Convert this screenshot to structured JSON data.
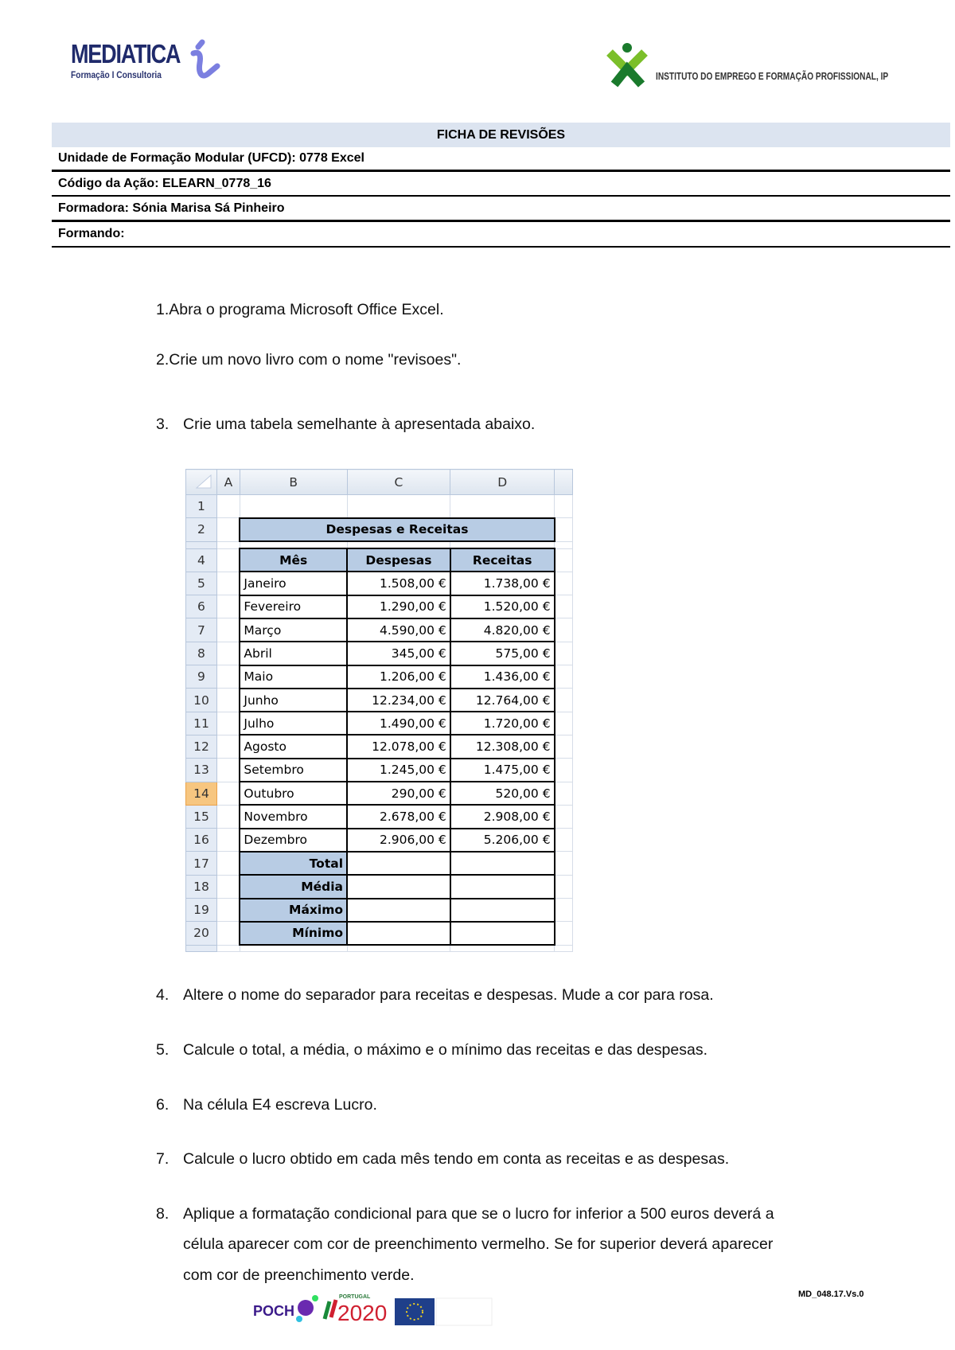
{
  "logos": {
    "mediatica": {
      "name": "MEDIATICA",
      "tagline": "Formação I Consultoria"
    },
    "iefp": {
      "name": "INSTITUTO DO EMPREGO E FORMAÇÃO PROFISSIONAL, IP"
    },
    "footer": "POCH PORTUGAL 2020 UNIÃO EUROPEIA Fundo Social Europeu"
  },
  "header": {
    "title": "FICHA DE REVISÕES",
    "ufcd": "Unidade de Formação Modular (UFCD): 0778 Excel",
    "codigo": "Código da Ação: ELEARN_0778_16",
    "formadora": "Formadora: Sónia Marisa Sá Pinheiro",
    "formando": "Formando:"
  },
  "instructions_top": [
    {
      "n": "1.",
      "text": "Abra o programa Microsoft Office Excel."
    },
    {
      "n": "2.",
      "text": "Crie um novo livro com o nome \"revisoes\"."
    },
    {
      "n": "3.",
      "text": "Crie uma tabela semelhante à apresentada abaixo."
    }
  ],
  "sheet": {
    "columns": [
      "A",
      "B",
      "C",
      "D"
    ],
    "selected_row": "14",
    "title": "Despesas e Receitas",
    "headers": [
      "Mês",
      "Despesas",
      "Receitas"
    ],
    "rows": [
      {
        "r": "5",
        "mes": "Janeiro",
        "desp": "1.508,00 €",
        "rec": "1.738,00 €"
      },
      {
        "r": "6",
        "mes": "Fevereiro",
        "desp": "1.290,00 €",
        "rec": "1.520,00 €"
      },
      {
        "r": "7",
        "mes": "Março",
        "desp": "4.590,00 €",
        "rec": "4.820,00 €"
      },
      {
        "r": "8",
        "mes": "Abril",
        "desp": "345,00 €",
        "rec": "575,00 €"
      },
      {
        "r": "9",
        "mes": "Maio",
        "desp": "1.206,00 €",
        "rec": "1.436,00 €"
      },
      {
        "r": "10",
        "mes": "Junho",
        "desp": "12.234,00 €",
        "rec": "12.764,00 €"
      },
      {
        "r": "11",
        "mes": "Julho",
        "desp": "1.490,00 €",
        "rec": "1.720,00 €"
      },
      {
        "r": "12",
        "mes": "Agosto",
        "desp": "12.078,00 €",
        "rec": "12.308,00 €"
      },
      {
        "r": "13",
        "mes": "Setembro",
        "desp": "1.245,00 €",
        "rec": "1.475,00 €"
      },
      {
        "r": "14",
        "mes": "Outubro",
        "desp": "290,00 €",
        "rec": "520,00 €"
      },
      {
        "r": "15",
        "mes": "Novembro",
        "desp": "2.678,00 €",
        "rec": "2.908,00 €"
      },
      {
        "r": "16",
        "mes": "Dezembro",
        "desp": "2.906,00 €",
        "rec": "5.206,00 €"
      }
    ],
    "summary": [
      {
        "r": "17",
        "label": "Total"
      },
      {
        "r": "18",
        "label": "Média"
      },
      {
        "r": "19",
        "label": "Máximo"
      },
      {
        "r": "20",
        "label": "Mínimo"
      }
    ]
  },
  "instructions_bottom": [
    {
      "n": "4.",
      "text": "Altere o nome do separador para receitas e despesas. Mude a cor para rosa."
    },
    {
      "n": "5.",
      "text": "Calcule o total, a média, o máximo e o mínimo das receitas e das despesas."
    },
    {
      "n": "6.",
      "text": "Na célula E4 escreva Lucro."
    },
    {
      "n": "7.",
      "text": "Calcule o lucro obtido em cada mês tendo em conta as receitas e as despesas."
    },
    {
      "n": "8.",
      "lines": [
        "Aplique a formatação condicional para que se o lucro for inferior a 500 euros deverá a",
        "célula aparecer com cor de preenchimento vermelho. Se for superior deverá aparecer",
        "com cor de preenchimento verde."
      ]
    }
  ],
  "doc_code": "MD_048.17.Vs.0"
}
